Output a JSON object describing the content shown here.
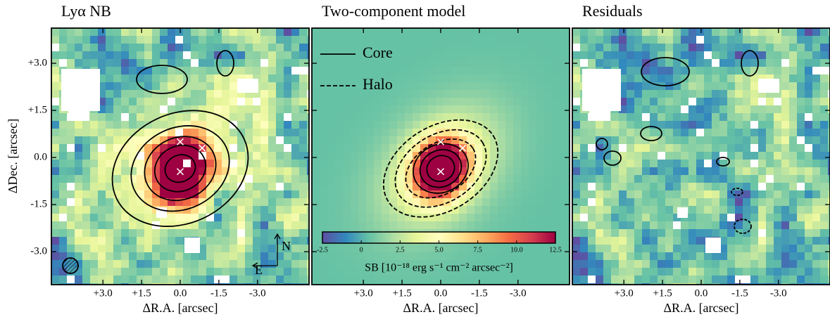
{
  "chart_data": [
    {
      "type": "image",
      "title": "Lyα NB",
      "xlabel": "ΔR.A. [arcsec]",
      "ylabel": "ΔDec. [arcsec]",
      "xlim": [
        5.0,
        -5.0
      ],
      "xticks": [
        {
          "value": 3,
          "label": "+3.0"
        },
        {
          "value": 1.5,
          "label": "+1.5"
        },
        {
          "value": 0,
          "label": "0.0"
        },
        -1.5,
        {
          "value": -3,
          "label": "-3.0"
        }
      ],
      "ylim": [
        -4.05,
        4.12
      ],
      "yticks": [
        {
          "value": 3,
          "label": "+3.0"
        },
        {
          "value": 1.5,
          "label": "+1.5"
        },
        {
          "value": 0,
          "label": "0.0"
        },
        -1.5,
        {
          "value": -3,
          "label": "-3.0"
        }
      ],
      "markers": {
        "x": [
          0,
          -0.85,
          0
        ],
        "y": [
          0.5,
          0.3,
          -0.45
        ]
      },
      "annotations": [
        "N",
        "E"
      ]
    },
    {
      "type": "image",
      "title": "Two-component model",
      "xlabel": "ΔR.A. [arcsec]",
      "xlim": [
        5.0,
        -5.0
      ],
      "xticks": [
        {
          "value": 3,
          "label": "+3.0"
        },
        {
          "value": 1.5,
          "label": "+1.5"
        },
        {
          "value": 0,
          "label": "0.0"
        },
        -1.5,
        {
          "value": -3,
          "label": "-3.0"
        }
      ],
      "ylim": [
        -4.05,
        4.12
      ],
      "markers": {
        "x": [
          0,
          -0.85,
          0
        ],
        "y": [
          0.5,
          0.3,
          -0.45
        ]
      },
      "series": [
        {
          "name": "Core",
          "linestyle": "solid"
        },
        {
          "name": "Halo",
          "linestyle": "dashed"
        }
      ],
      "colorbar": {
        "label": "SB [10⁻¹⁸ erg s⁻¹ cm⁻² arcsec⁻²]",
        "lim": [
          -2.5,
          12.5
        ],
        "ticks": [
          -2.5,
          0,
          2.5,
          {
            "value": 5,
            "label": "5.0"
          },
          7.5,
          {
            "value": 10,
            "label": "10.0"
          },
          12.5
        ]
      }
    },
    {
      "type": "image",
      "title": "Residuals",
      "xlabel": "ΔR.A. [arcsec]",
      "xlim": [
        5.0,
        -5.0
      ],
      "xticks": [
        {
          "value": 3,
          "label": "+3.0"
        },
        {
          "value": 1.5,
          "label": "+1.5"
        },
        {
          "value": 0,
          "label": "0.0"
        },
        -1.5,
        {
          "value": -3,
          "label": "-3.0"
        }
      ],
      "ylim": [
        -4.05,
        4.12
      ]
    }
  ]
}
